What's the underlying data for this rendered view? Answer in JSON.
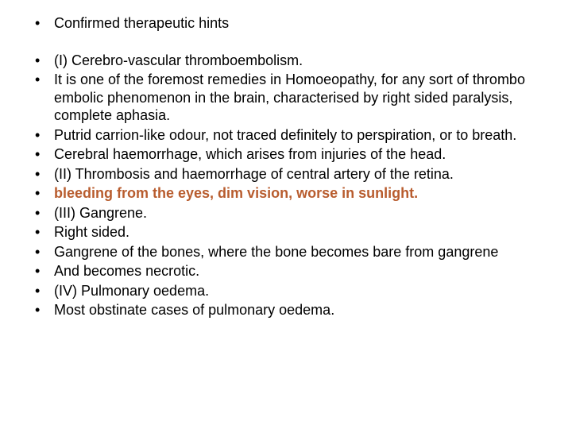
{
  "highlight_color": "#b85c2e",
  "title": "Confirmed therapeutic hints",
  "items": [
    "(I) Cerebro-vascular thromboembolism.",
    " It is one of the foremost remedies in Homoeopathy, for any sort of thrombo embolic phenomenon in the brain, characterised by right sided paralysis, complete aphasia.",
    " Putrid carrion-like odour, not traced definitely to perspiration, or to breath.",
    " Cerebral haemorrhage, which arises from injuries of the head.",
    " (II) Thrombosis and haemorrhage of central artery of the retina.",
    " bleeding from the eyes, dim vision, worse in sunlight.",
    " (III) Gangrene.",
    " Right sided.",
    " Gangrene of the bones, where the bone becomes bare from gangrene",
    " And becomes necrotic.",
    " (IV) Pulmonary oedema.",
    " Most obstinate cases of pulmonary oedema."
  ],
  "highlight_indices": [
    5
  ]
}
